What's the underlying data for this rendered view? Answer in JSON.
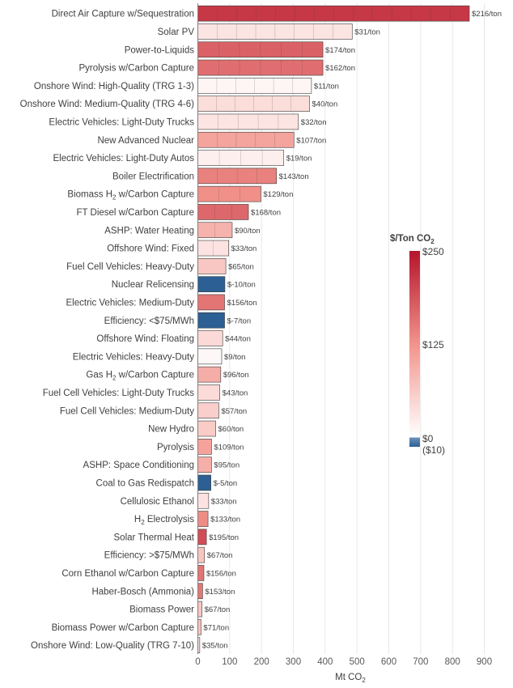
{
  "chart_data": {
    "type": "bar",
    "orientation": "horizontal",
    "xlabel": "Mt CO",
    "xlabel_subscript": "2",
    "xlim": [
      0,
      900
    ],
    "xticks": [
      0,
      100,
      200,
      300,
      400,
      500,
      600,
      700,
      800,
      900
    ],
    "grid": "x",
    "colorbar": {
      "title": "$/Ton CO",
      "title_subscript": "2",
      "placement": "right",
      "ticks": [
        "$250",
        "$125",
        "$0",
        "($10)"
      ],
      "colors": {
        "low": "#2c5f93",
        "zero": "#ffffff",
        "mid": "#f2948c",
        "high": "#b5152c"
      }
    },
    "categories": [
      {
        "label": "Direct Air Capture w/Sequestration",
        "value": 853,
        "cost_label": "$216/ton"
      },
      {
        "label": "Solar PV",
        "value": 485,
        "cost_label": "$31/ton"
      },
      {
        "label": "Power-to-Liquids",
        "value": 393,
        "cost_label": "$174/ton"
      },
      {
        "label": "Pyrolysis w/Carbon Capture",
        "value": 393,
        "cost_label": "$162/ton"
      },
      {
        "label": "Onshore Wind: High-Quality (TRG 1-3)",
        "value": 357,
        "cost_label": "$11/ton"
      },
      {
        "label": "Onshore Wind: Medium-Quality (TRG 4-6)",
        "value": 351,
        "cost_label": "$40/ton"
      },
      {
        "label": "Electric Vehicles: Light-Duty Trucks",
        "value": 316,
        "cost_label": "$32/ton"
      },
      {
        "label": "New Advanced Nuclear",
        "value": 302,
        "cost_label": "$107/ton"
      },
      {
        "label": "Electric Vehicles: Light-Duty Autos",
        "value": 270,
        "cost_label": "$19/ton"
      },
      {
        "label": "Boiler Electrification",
        "value": 247,
        "cost_label": "$143/ton"
      },
      {
        "label": "Biomass H",
        "label_subscript": "2",
        "label_suffix": " w/Carbon Capture",
        "value": 198,
        "cost_label": "$129/ton"
      },
      {
        "label": "FT Diesel w/Carbon Capture",
        "value": 159,
        "cost_label": "$168/ton"
      },
      {
        "label": "ASHP: Water Heating",
        "value": 108,
        "cost_label": "$90/ton"
      },
      {
        "label": "Offshore Wind: Fixed",
        "value": 97,
        "cost_label": "$33/ton"
      },
      {
        "label": "Fuel Cell Vehicles: Heavy-Duty",
        "value": 88,
        "cost_label": "$65/ton"
      },
      {
        "label": "Nuclear Relicensing",
        "value": 85,
        "cost_label": "$-10/ton"
      },
      {
        "label": "Electric Vehicles: Medium-Duty",
        "value": 84,
        "cost_label": "$156/ton"
      },
      {
        "label": "Efficiency: <$75/MWh",
        "value": 84,
        "cost_label": "$-7/ton"
      },
      {
        "label": "Offshore Wind: Floating",
        "value": 78,
        "cost_label": "$44/ton"
      },
      {
        "label": "Electric Vehicles: Heavy-Duty",
        "value": 75,
        "cost_label": "$9/ton"
      },
      {
        "label": "Gas H",
        "label_subscript": "2",
        "label_suffix": " w/Carbon Capture",
        "value": 72,
        "cost_label": "$96/ton"
      },
      {
        "label": "Fuel Cell Vehicles: Light-Duty Trucks",
        "value": 69,
        "cost_label": "$43/ton"
      },
      {
        "label": "Fuel Cell Vehicles: Medium-Duty",
        "value": 66,
        "cost_label": "$57/ton"
      },
      {
        "label": "New Hydro",
        "value": 56,
        "cost_label": "$60/ton"
      },
      {
        "label": "Pyrolysis",
        "value": 43,
        "cost_label": "$109/ton"
      },
      {
        "label": "ASHP: Space Conditioning",
        "value": 43,
        "cost_label": "$95/ton"
      },
      {
        "label": "Coal to Gas Redispatch",
        "value": 41,
        "cost_label": "$-5/ton"
      },
      {
        "label": "Cellulosic Ethanol",
        "value": 34,
        "cost_label": "$33/ton"
      },
      {
        "label": "H",
        "label_subscript": "2",
        "label_suffix": " Electrolysis",
        "value": 32,
        "cost_label": "$133/ton"
      },
      {
        "label": "Solar Thermal Heat",
        "value": 27,
        "cost_label": "$195/ton"
      },
      {
        "label": "Efficiency: >$75/MWh",
        "value": 21,
        "cost_label": "$67/ton"
      },
      {
        "label": "Corn Ethanol w/Carbon Capture",
        "value": 19,
        "cost_label": "$156/ton"
      },
      {
        "label": "Haber-Bosch (Ammonia)",
        "value": 15,
        "cost_label": "$153/ton"
      },
      {
        "label": "Biomass Power",
        "value": 13,
        "cost_label": "$67/ton"
      },
      {
        "label": "Biomass Power w/Carbon Capture",
        "value": 10,
        "cost_label": "$71/ton"
      },
      {
        "label": "Onshore Wind: Low-Quality (TRG 7-10)",
        "value": 6,
        "cost_label": "$35/ton"
      }
    ]
  }
}
